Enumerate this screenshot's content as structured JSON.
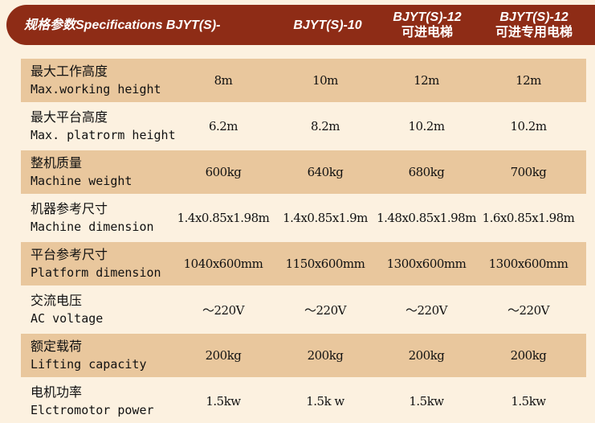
{
  "header": {
    "col0": "规格参数Specifications BJYT(S)-",
    "col1": "BJYT(S)-10",
    "col2_line1": "BJYT(S)-12",
    "col2_line2": "可进电梯",
    "col3_line1": "BJYT(S)-12",
    "col3_line2": "可进专用电梯"
  },
  "rows": [
    {
      "cn": "最大工作高度",
      "en": "Max.working height",
      "v": [
        "8m",
        "10m",
        "12m",
        "12m"
      ]
    },
    {
      "cn": "最大平台高度",
      "en": "Max. platrorm height",
      "v": [
        "6.2m",
        "8.2m",
        "10.2m",
        "10.2m"
      ]
    },
    {
      "cn": "整机质量",
      "en": "Machine weight",
      "v": [
        "600kg",
        "640kg",
        "680kg",
        "700kg"
      ]
    },
    {
      "cn": "机器参考尺寸",
      "en": "Machine dimension",
      "v": [
        "1.4x0.85x1.98m",
        "1.4x0.85x1.9m",
        "1.48x0.85x1.98m",
        "1.6x0.85x1.98m"
      ]
    },
    {
      "cn": "平台参考尺寸",
      "en": "Platform dimension",
      "v": [
        "1040x600mm",
        "1150x600mm",
        "1300x600mm",
        "1300x600mm"
      ]
    },
    {
      "cn": "交流电压",
      "en": "AC voltage",
      "v": [
        "～220V",
        "～220V",
        "～220V",
        "～220V"
      ]
    },
    {
      "cn": "额定载荷",
      "en": "Lifting capacity",
      "v": [
        "200kg",
        "200kg",
        "200kg",
        "200kg"
      ]
    },
    {
      "cn": "电机功率",
      "en": "Elctromotor power",
      "v": [
        "1.5kw",
        "1.5k w",
        "1.5kw",
        "1.5kw"
      ]
    }
  ],
  "colors": {
    "header": "#8e2c16",
    "row_alt": "#e9c79d",
    "background": "#fcf1e0"
  }
}
